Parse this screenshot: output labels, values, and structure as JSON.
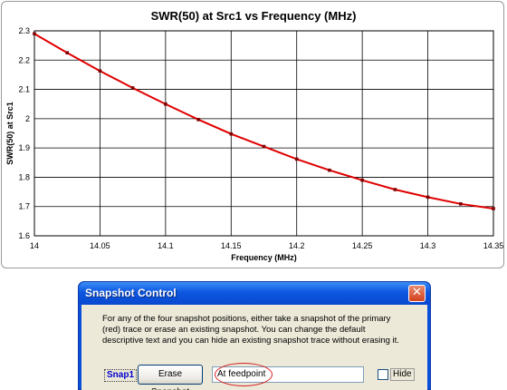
{
  "chart_data": {
    "type": "line",
    "title": "SWR(50) at Src1  vs  Frequency (MHz)",
    "xlabel": "Frequency (MHz)",
    "ylabel": "SWR(50) at Src1",
    "xlim": [
      14,
      14.35
    ],
    "ylim": [
      1.6,
      2.3
    ],
    "x_ticks": [
      "14",
      "14.05",
      "14.1",
      "14.15",
      "14.2",
      "14.25",
      "14.3",
      "14.35"
    ],
    "y_ticks": [
      "2.3",
      "2.2",
      "2.1",
      "2",
      "1.9",
      "1.8",
      "1.7",
      "1.6"
    ],
    "grid": true,
    "series": [
      {
        "color": "#e00000",
        "marker_color": "#800000",
        "x": [
          14,
          14.025,
          14.05,
          14.075,
          14.1,
          14.125,
          14.15,
          14.175,
          14.2,
          14.225,
          14.25,
          14.275,
          14.3,
          14.325,
          14.35
        ],
        "y": [
          2.29,
          2.225,
          2.163,
          2.105,
          2.05,
          1.997,
          1.948,
          1.905,
          1.862,
          1.824,
          1.79,
          1.758,
          1.732,
          1.709,
          1.693
        ]
      }
    ]
  },
  "dialog": {
    "title": "Snapshot Control",
    "close_icon": "close-icon",
    "description": "For any of the four snapshot positions, either take a snapshot of the primary (red) trace or erase an existing snapshot.  You can change the default descriptive text and you can hide an existing snapshot trace without erasing it.",
    "snap_label": "Snap1",
    "erase_button": "Erase Snapshot",
    "description_field_value": "At feedpoint",
    "hide_label": "Hide",
    "hide_checked": false
  }
}
